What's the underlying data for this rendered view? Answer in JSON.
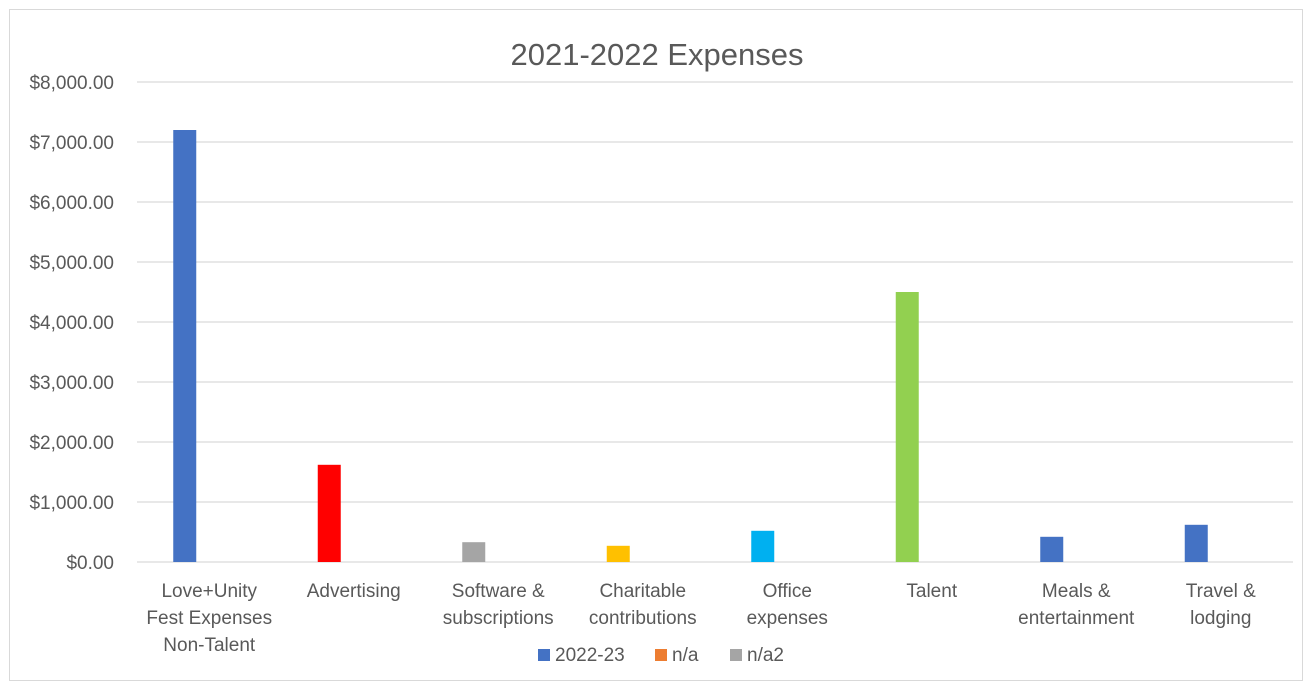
{
  "chart_data": {
    "type": "bar",
    "title": "2021-2022 Expenses",
    "xlabel": "",
    "ylabel": "",
    "ylim": [
      0,
      8000
    ],
    "y_ticks": [
      "$0.00",
      "$1,000.00",
      "$2,000.00",
      "$3,000.00",
      "$4,000.00",
      "$5,000.00",
      "$6,000.00",
      "$7,000.00",
      "$8,000.00"
    ],
    "categories": [
      [
        "Love+Unity",
        "Fest Expenses",
        "Non-Talent"
      ],
      [
        "Advertising"
      ],
      [
        "Software &",
        "subscriptions"
      ],
      [
        "Charitable",
        "contributions"
      ],
      [
        "Office",
        "expenses"
      ],
      [
        "Talent"
      ],
      [
        "Meals &",
        "entertainment"
      ],
      [
        "Travel &",
        "lodging"
      ]
    ],
    "series": [
      {
        "name": "2022-23",
        "color": "#4472c4",
        "values": [
          7200,
          1620,
          330,
          270,
          520,
          4500,
          420,
          620
        ]
      },
      {
        "name": "n/a",
        "color": "#ed7d31",
        "values": [
          0,
          0,
          0,
          0,
          0,
          0,
          0,
          0
        ]
      },
      {
        "name": "n/a2",
        "color": "#a5a5a5",
        "values": [
          0,
          0,
          0,
          0,
          0,
          0,
          0,
          0
        ]
      }
    ],
    "bar_colors": [
      "#4472c4",
      "#ff0000",
      "#a5a5a5",
      "#ffc000",
      "#00b0f0",
      "#92d050",
      "#4472c4",
      "#4472c4"
    ],
    "grid": true,
    "legend_position": "bottom"
  }
}
